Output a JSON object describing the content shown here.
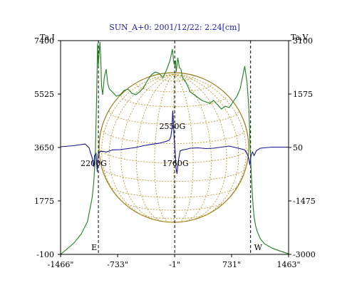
{
  "chart_data": {
    "type": "line",
    "title": "SUN_A+0: 2001/12/22: 2.24[cm]",
    "left_axis": {
      "label": "Ta,I",
      "ticks": [
        7400,
        5525,
        3650,
        1775,
        -100
      ],
      "tick_labels": [
        "7400",
        "5525",
        "3650",
        "1775",
        "-100"
      ],
      "range": [
        -100,
        7400
      ]
    },
    "right_axis": {
      "label": "Ta,V",
      "ticks": [
        3100,
        1575,
        50,
        -1475,
        -3000
      ],
      "tick_labels": [
        "3100",
        "1575",
        "50",
        "-1475",
        "-3000"
      ],
      "range": [
        -3000,
        3100
      ]
    },
    "x_axis": {
      "ticks": [
        -1466,
        -733,
        -1,
        731,
        1463
      ],
      "tick_labels": [
        "-1466\"",
        "-733\"",
        "-1\"",
        "731\"",
        "1463\""
      ],
      "range": [
        -1466,
        1463
      ]
    },
    "limb_markers": [
      {
        "x": -980,
        "label": "E"
      },
      {
        "x": 0,
        "label": ""
      },
      {
        "x": 975,
        "label": "W"
      }
    ],
    "annotations": [
      {
        "text": "2550G",
        "x": -30,
        "y_left": 4300
      },
      {
        "text": "2200G",
        "x": -1040,
        "y_left": 3000
      },
      {
        "text": "1760G",
        "x": 10,
        "y_left": 3000
      }
    ],
    "series": [
      {
        "axis": "left",
        "color": "#1f7f1f",
        "x": [
          -1466,
          -1400,
          -1300,
          -1200,
          -1120,
          -1060,
          -1040,
          -1020,
          -1005,
          -990,
          -980,
          -970,
          -960,
          -950,
          -940,
          -925,
          -905,
          -880,
          -860,
          -840,
          -800,
          -750,
          -700,
          -650,
          -600,
          -550,
          -500,
          -450,
          -400,
          -350,
          -300,
          -250,
          -200,
          -150,
          -100,
          -60,
          -30,
          -10,
          0,
          10,
          20,
          40,
          60,
          80,
          100,
          130,
          160,
          200,
          250,
          300,
          350,
          400,
          450,
          500,
          550,
          600,
          650,
          700,
          750,
          800,
          840,
          870,
          900,
          930,
          950,
          960,
          970,
          980,
          990,
          1000,
          1010,
          1020,
          1040,
          1060,
          1100,
          1150,
          1250,
          1350,
          1463
        ],
        "y": [
          -100,
          50,
          280,
          620,
          1050,
          1900,
          2400,
          3300,
          5200,
          7300,
          6500,
          7000,
          7350,
          6800,
          5800,
          5500,
          6100,
          6400,
          5900,
          5700,
          5600,
          5450,
          5500,
          5650,
          5700,
          5550,
          5500,
          5600,
          5750,
          6000,
          6200,
          6300,
          6250,
          6100,
          6400,
          6700,
          7100,
          6600,
          6550,
          6700,
          6300,
          6800,
          6450,
          6400,
          6100,
          6000,
          5850,
          5600,
          5500,
          5400,
          5300,
          5250,
          5200,
          5300,
          5150,
          5000,
          5100,
          5050,
          5250,
          5450,
          5700,
          6100,
          6500,
          5900,
          5100,
          4500,
          3600,
          3000,
          2400,
          1900,
          1500,
          1200,
          900,
          700,
          450,
          280,
          120,
          20,
          -80
        ]
      },
      {
        "axis": "right",
        "color": "#141496",
        "x": [
          -1466,
          -1300,
          -1150,
          -1100,
          -1060,
          -1040,
          -1030,
          -1010,
          -995,
          -985,
          -970,
          -950,
          -920,
          -880,
          -800,
          -700,
          -600,
          -500,
          -400,
          -300,
          -200,
          -150,
          -100,
          -70,
          -50,
          -35,
          -25,
          -15,
          -8,
          0,
          8,
          18,
          30,
          45,
          70,
          100,
          150,
          200,
          300,
          400,
          500,
          600,
          700,
          800,
          900,
          930,
          950,
          965,
          975,
          985,
          1000,
          1020,
          1050,
          1100,
          1250,
          1463
        ],
        "y": [
          70,
          100,
          150,
          40,
          -250,
          -500,
          -180,
          -120,
          -650,
          -150,
          -90,
          -60,
          -60,
          -80,
          -20,
          -10,
          20,
          50,
          100,
          140,
          170,
          200,
          230,
          260,
          350,
          600,
          1100,
          700,
          350,
          120,
          -150,
          -550,
          -700,
          -350,
          -50,
          -20,
          0,
          30,
          40,
          20,
          30,
          60,
          90,
          40,
          -20,
          -120,
          -250,
          -450,
          -250,
          -150,
          -80,
          -180,
          -40,
          30,
          60,
          60
        ]
      }
    ]
  }
}
